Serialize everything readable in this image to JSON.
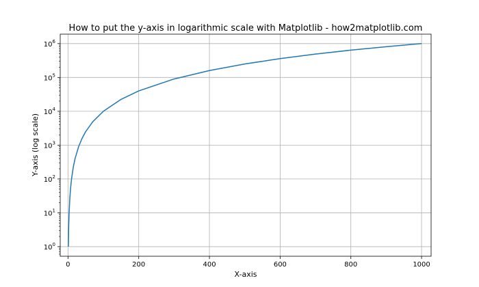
{
  "chart_data": {
    "type": "line",
    "title": "How to put the y-axis in logarithmic scale with Matplotlib - how2matplotlib.com",
    "xlabel": "X-axis",
    "ylabel": "Y-axis (log scale)",
    "xlim": [
      -22,
      1027
    ],
    "ylim": [
      0.52,
      1900000
    ],
    "yscale": "log",
    "grid": true,
    "x_ticks": [
      0,
      200,
      400,
      600,
      800,
      1000
    ],
    "x_tick_labels": [
      "0",
      "200",
      "400",
      "600",
      "800",
      "1000"
    ],
    "y_tick_exponents": [
      0,
      1,
      2,
      3,
      4,
      5,
      6
    ],
    "y_tick_base": "10",
    "function": "y = x^2 (x from 1 to 1000)",
    "series": [
      {
        "color": "#1f77b4",
        "x": [
          1,
          2,
          3,
          5,
          7,
          10,
          15,
          20,
          30,
          40,
          50,
          70,
          100,
          150,
          200,
          300,
          400,
          500,
          600,
          700,
          800,
          900,
          1000
        ],
        "values": [
          1,
          4,
          9,
          25,
          49,
          100,
          225,
          400,
          900,
          1600,
          2500,
          4900,
          10000,
          22500,
          40000,
          90000,
          160000,
          250000,
          360000,
          490000,
          640000,
          810000,
          1000000
        ]
      }
    ]
  }
}
